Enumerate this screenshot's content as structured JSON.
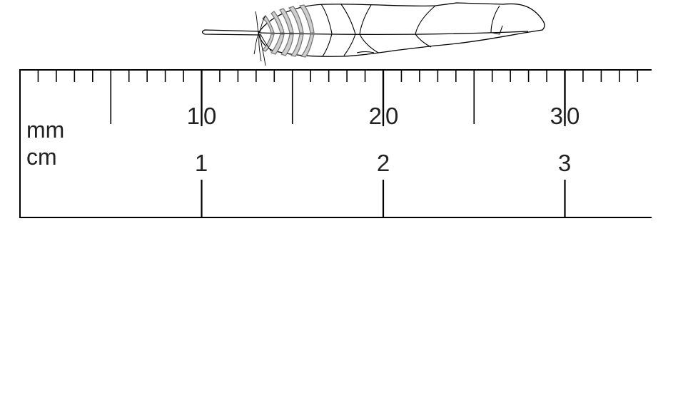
{
  "ruler": {
    "unit_mm": "mm",
    "unit_cm": "cm",
    "mm_labels": [
      "10",
      "20",
      "30"
    ],
    "cm_labels": [
      "1",
      "2",
      "3"
    ],
    "range_mm": [
      0,
      35
    ]
  },
  "feather": {
    "icon": "feather-icon",
    "stroke_color": "#000000",
    "fill_color": "#ffffff",
    "band_color": "#bdbdbd"
  },
  "colors": {
    "line": "#000000",
    "background": "#ffffff"
  }
}
